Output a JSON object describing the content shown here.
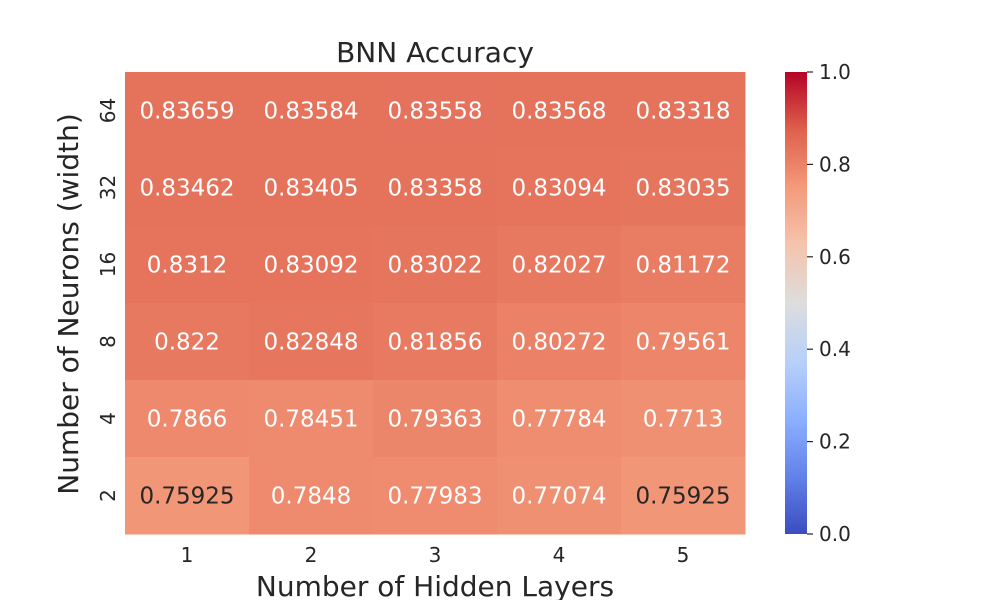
{
  "chart_data": {
    "type": "heatmap",
    "title": "BNN Accuracy",
    "xlabel": "Number of Hidden Layers",
    "ylabel": "Number of Neurons (width)",
    "x_categories": [
      "1",
      "2",
      "3",
      "4",
      "5"
    ],
    "y_categories": [
      "64",
      "32",
      "16",
      "8",
      "4",
      "2"
    ],
    "values": [
      [
        0.83659,
        0.83584,
        0.83558,
        0.83568,
        0.83318
      ],
      [
        0.83462,
        0.83405,
        0.83358,
        0.83094,
        0.83035
      ],
      [
        0.8312,
        0.83092,
        0.83022,
        0.82027,
        0.81172
      ],
      [
        0.822,
        0.82848,
        0.81856,
        0.80272,
        0.79561
      ],
      [
        0.7866,
        0.78451,
        0.79363,
        0.77784,
        0.7713
      ],
      [
        0.75925,
        0.7848,
        0.77983,
        0.77074,
        0.75925
      ]
    ],
    "value_labels": [
      [
        "0.83659",
        "0.83584",
        "0.83558",
        "0.83568",
        "0.83318"
      ],
      [
        "0.83462",
        "0.83405",
        "0.83358",
        "0.83094",
        "0.83035"
      ],
      [
        "0.8312",
        "0.83092",
        "0.83022",
        "0.82027",
        "0.81172"
      ],
      [
        "0.822",
        "0.82848",
        "0.81856",
        "0.80272",
        "0.79561"
      ],
      [
        "0.7866",
        "0.78451",
        "0.79363",
        "0.77784",
        "0.7713"
      ],
      [
        "0.75925",
        "0.7848",
        "0.77983",
        "0.77074",
        "0.75925"
      ]
    ],
    "colorbar": {
      "min": 0.0,
      "max": 1.0,
      "ticks": [
        "0.0",
        "0.2",
        "0.4",
        "0.6",
        "0.8",
        "1.0"
      ],
      "colormap": "coolwarm"
    },
    "grid": false,
    "colors": {
      "text_light": "#ffffff",
      "text_dark": "#262626",
      "axis_text": "#262626"
    }
  }
}
